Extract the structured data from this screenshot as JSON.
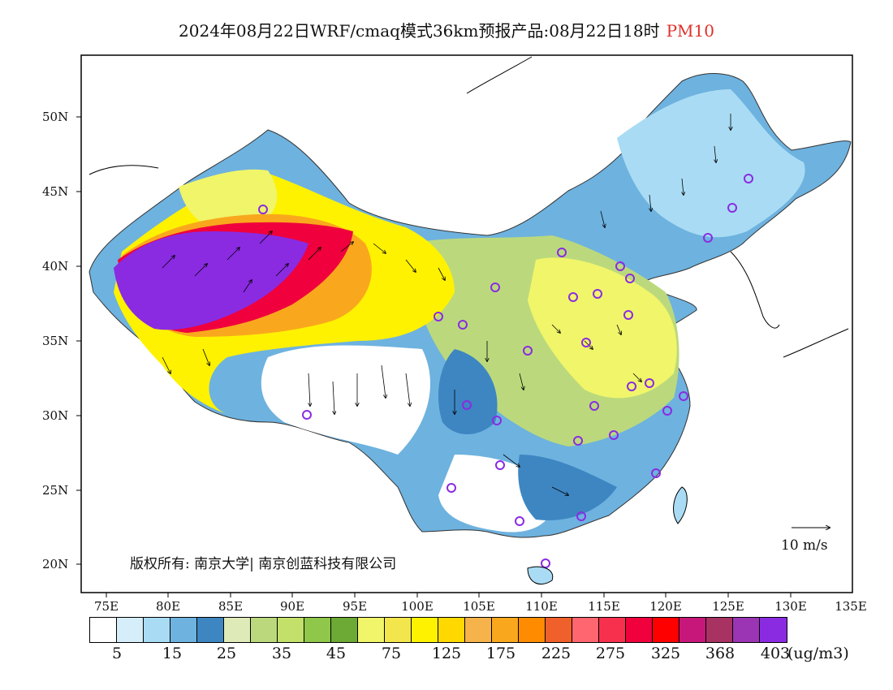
{
  "header": {
    "title": "2024年08月22日WRF/cmaq模式36km预报产品:08月22日18时",
    "variable": "PM10"
  },
  "map": {
    "lat_labels": [
      "50N",
      "45N",
      "40N",
      "35N",
      "30N",
      "25N",
      "20N"
    ],
    "lon_labels": [
      "75E",
      "80E",
      "85E",
      "90E",
      "95E",
      "100E",
      "105E",
      "110E",
      "115E",
      "120E",
      "125E",
      "130E",
      "135E"
    ],
    "copyright": "版权所有: 南京大学| 南京创蓝科技有限公司",
    "wind_reference": "10 m/s"
  },
  "colorbar": {
    "colors": [
      "#ffffff",
      "#d6eefa",
      "#a9dcf4",
      "#6eb2df",
      "#3d86c2",
      "#dfeab9",
      "#bbd97c",
      "#c2e06a",
      "#8fc74a",
      "#6ca935",
      "#f0f56a",
      "#f3e64d",
      "#fff200",
      "#ffd800",
      "#f6b24b",
      "#f9a81d",
      "#ff8c00",
      "#f0602a",
      "#ff6670",
      "#f7304e",
      "#f0003c",
      "#ff0000",
      "#c8177a",
      "#a83262",
      "#9b35b4",
      "#8a2be2"
    ],
    "labels": [
      "5",
      "15",
      "25",
      "35",
      "45",
      "75",
      "125",
      "175",
      "225",
      "275",
      "325",
      "368",
      "403"
    ],
    "unit": "(ug/m3)"
  }
}
